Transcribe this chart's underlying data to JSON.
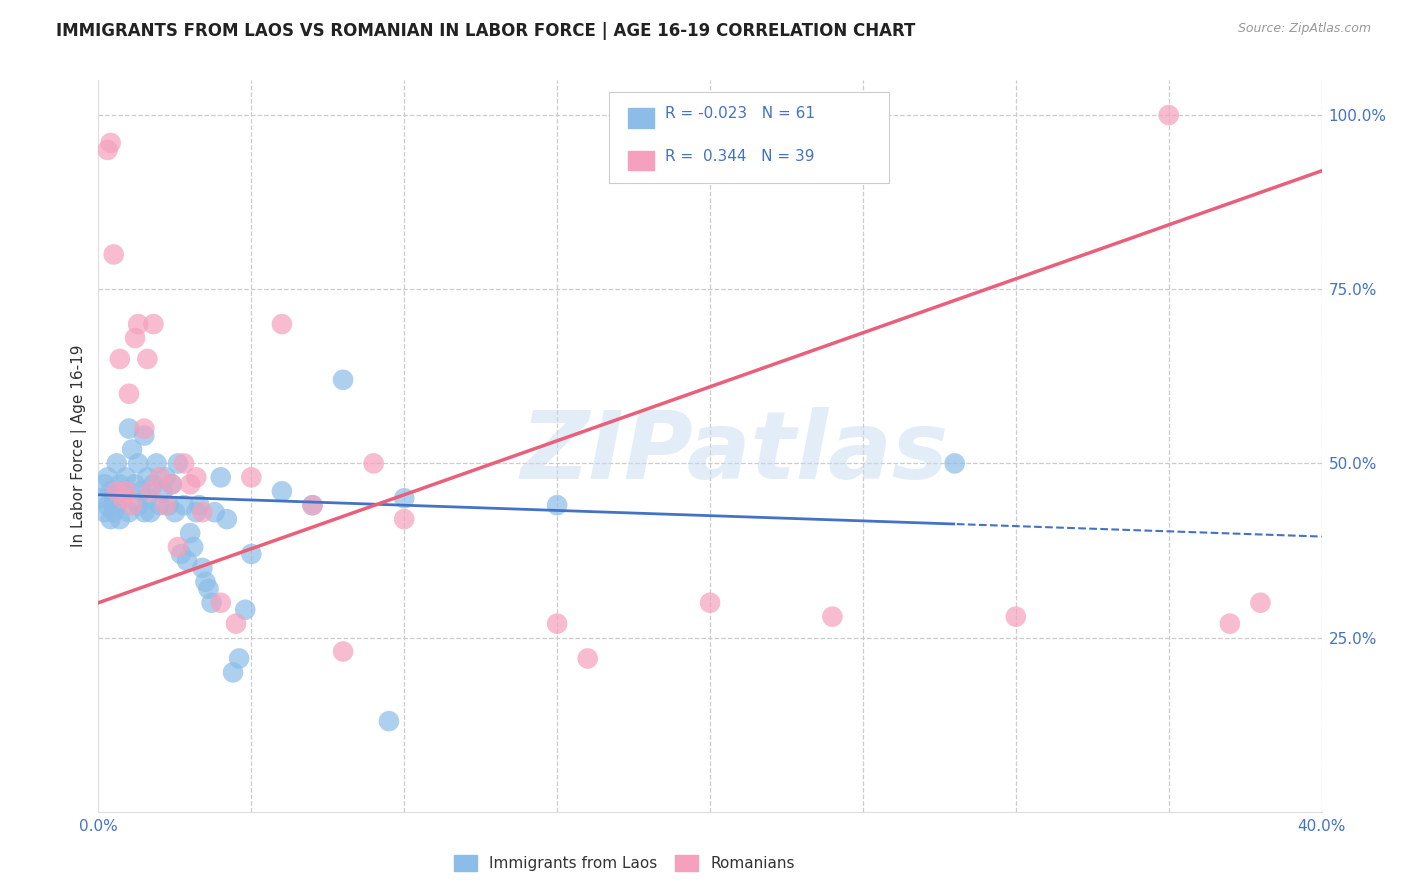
{
  "title": "IMMIGRANTS FROM LAOS VS ROMANIAN IN LABOR FORCE | AGE 16-19 CORRELATION CHART",
  "source": "Source: ZipAtlas.com",
  "ylabel": "In Labor Force | Age 16-19",
  "xlim": [
    0.0,
    0.4
  ],
  "ylim": [
    0.0,
    1.05
  ],
  "laos_R": -0.023,
  "laos_N": 61,
  "roman_R": 0.344,
  "roman_N": 39,
  "laos_color": "#8BBDE8",
  "roman_color": "#F5A0BC",
  "laos_line_color": "#4472C4",
  "roman_line_color": "#E8607A",
  "watermark": "ZIPatlas",
  "laos_x": [
    0.001,
    0.002,
    0.002,
    0.003,
    0.003,
    0.004,
    0.004,
    0.005,
    0.005,
    0.006,
    0.006,
    0.007,
    0.007,
    0.008,
    0.009,
    0.01,
    0.01,
    0.011,
    0.012,
    0.013,
    0.013,
    0.014,
    0.015,
    0.015,
    0.016,
    0.016,
    0.017,
    0.018,
    0.019,
    0.02,
    0.021,
    0.022,
    0.023,
    0.024,
    0.025,
    0.026,
    0.027,
    0.028,
    0.029,
    0.03,
    0.031,
    0.032,
    0.033,
    0.034,
    0.035,
    0.036,
    0.037,
    0.038,
    0.04,
    0.042,
    0.044,
    0.046,
    0.048,
    0.05,
    0.06,
    0.07,
    0.08,
    0.095,
    0.1,
    0.15,
    0.28
  ],
  "laos_y": [
    0.45,
    0.43,
    0.47,
    0.44,
    0.48,
    0.42,
    0.46,
    0.45,
    0.43,
    0.5,
    0.44,
    0.47,
    0.42,
    0.46,
    0.48,
    0.43,
    0.55,
    0.52,
    0.47,
    0.5,
    0.44,
    0.46,
    0.43,
    0.54,
    0.48,
    0.45,
    0.43,
    0.47,
    0.5,
    0.44,
    0.46,
    0.48,
    0.44,
    0.47,
    0.43,
    0.5,
    0.37,
    0.44,
    0.36,
    0.4,
    0.38,
    0.43,
    0.44,
    0.35,
    0.33,
    0.32,
    0.3,
    0.43,
    0.48,
    0.42,
    0.2,
    0.22,
    0.29,
    0.37,
    0.46,
    0.44,
    0.62,
    0.13,
    0.45,
    0.44,
    0.5
  ],
  "roman_x": [
    0.003,
    0.004,
    0.005,
    0.006,
    0.007,
    0.008,
    0.009,
    0.01,
    0.011,
    0.012,
    0.013,
    0.015,
    0.016,
    0.017,
    0.018,
    0.02,
    0.022,
    0.024,
    0.026,
    0.028,
    0.03,
    0.032,
    0.034,
    0.04,
    0.045,
    0.05,
    0.06,
    0.07,
    0.08,
    0.09,
    0.1,
    0.15,
    0.16,
    0.2,
    0.24,
    0.3,
    0.35,
    0.37,
    0.38
  ],
  "roman_y": [
    0.95,
    0.96,
    0.8,
    0.46,
    0.65,
    0.45,
    0.46,
    0.6,
    0.44,
    0.68,
    0.7,
    0.55,
    0.65,
    0.46,
    0.7,
    0.48,
    0.44,
    0.47,
    0.38,
    0.5,
    0.47,
    0.48,
    0.43,
    0.3,
    0.27,
    0.48,
    0.7,
    0.44,
    0.23,
    0.5,
    0.42,
    0.27,
    0.22,
    0.3,
    0.28,
    0.28,
    1.0,
    0.27,
    0.3
  ],
  "laos_line_intercept": 0.455,
  "laos_line_slope": -0.15,
  "roman_line_intercept": 0.3,
  "roman_line_slope": 1.55
}
